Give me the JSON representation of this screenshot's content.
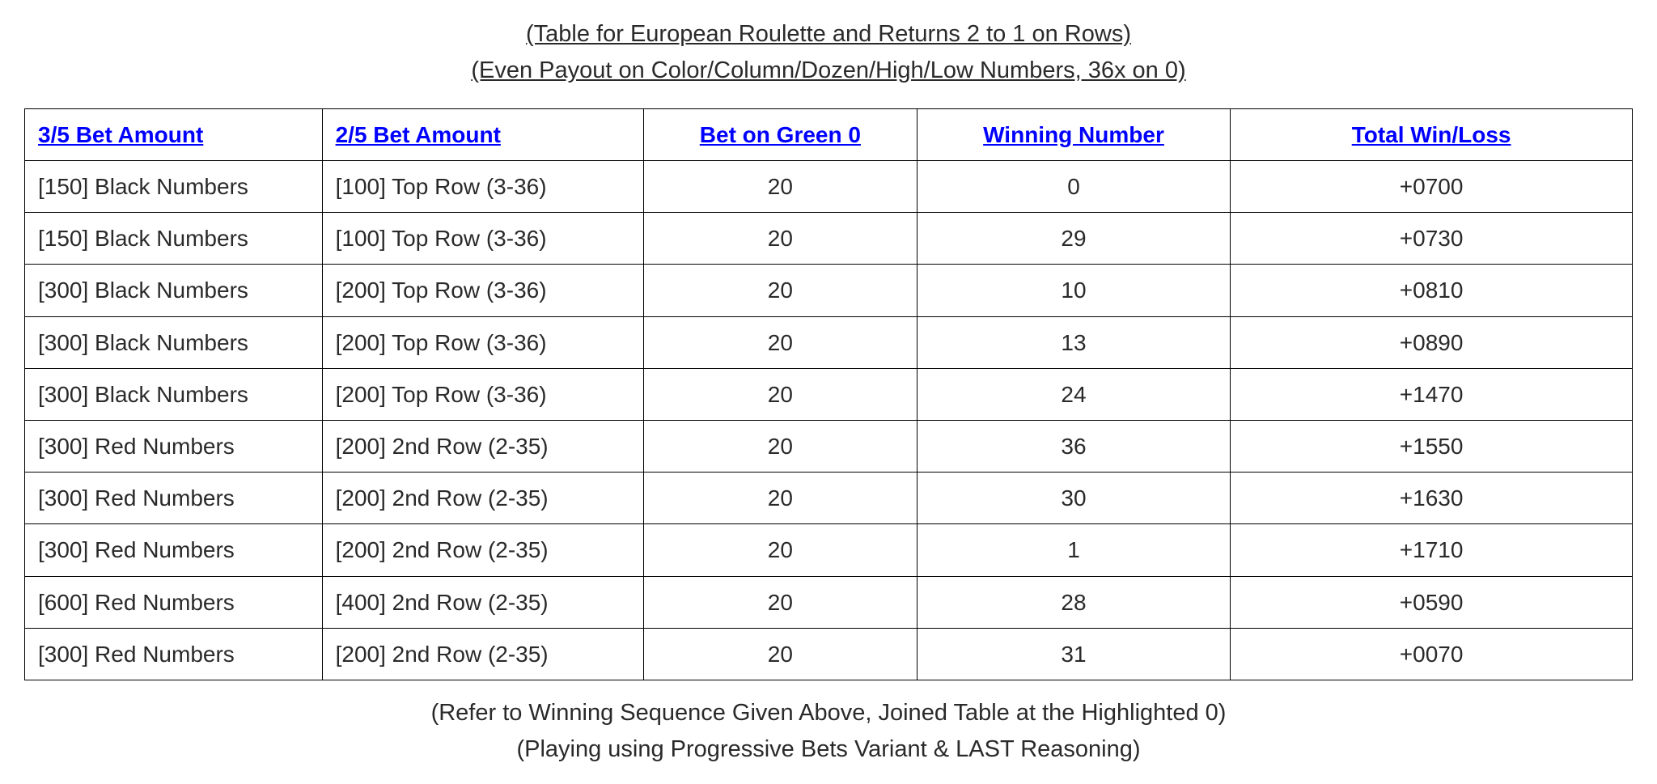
{
  "header": {
    "line1": "(Table for European Roulette and Returns 2 to 1 on Rows)",
    "line2": "(Even Payout on Color/Column/Dozen/High/Low Numbers, 36x on 0)"
  },
  "table": {
    "columns": [
      {
        "label": "3/5 Bet Amount",
        "align": "left"
      },
      {
        "label": "2/5 Bet Amount",
        "align": "left"
      },
      {
        "label": "Bet on Green 0",
        "align": "center"
      },
      {
        "label": "Winning Number",
        "align": "center"
      },
      {
        "label": "Total Win/Loss",
        "align": "center"
      }
    ],
    "rows": [
      [
        "[150] Black Numbers",
        "[100] Top Row (3-36)",
        "20",
        "0",
        "+0700"
      ],
      [
        "[150] Black Numbers",
        "[100] Top Row (3-36)",
        "20",
        "29",
        "+0730"
      ],
      [
        "[300] Black Numbers",
        "[200] Top Row (3-36)",
        "20",
        "10",
        "+0810"
      ],
      [
        "[300] Black Numbers",
        "[200] Top Row (3-36)",
        "20",
        "13",
        "+0890"
      ],
      [
        "[300] Black Numbers",
        "[200] Top Row (3-36)",
        "20",
        "24",
        "+1470"
      ],
      [
        "[300] Red Numbers",
        "[200] 2nd Row (2-35)",
        "20",
        "36",
        "+1550"
      ],
      [
        "[300] Red Numbers",
        "[200] 2nd Row (2-35)",
        "20",
        "30",
        "+1630"
      ],
      [
        "[300] Red Numbers",
        "[200] 2nd Row (2-35)",
        "20",
        "1",
        "+1710"
      ],
      [
        "[600] Red Numbers",
        "[400] 2nd Row (2-35)",
        "20",
        "28",
        "+0590"
      ],
      [
        "[300] Red Numbers",
        "[200] 2nd Row (2-35)",
        "20",
        "31",
        "+0070"
      ]
    ]
  },
  "footer": {
    "line1": "(Refer to Winning Sequence Given Above, Joined Table at the Highlighted 0)",
    "line2": "(Playing using Progressive Bets Variant & LAST Reasoning)"
  },
  "style": {
    "header_color": "#0000ff",
    "border_color": "#000000",
    "text_color": "#2a2a2a",
    "background_color": "#ffffff",
    "font_family": "Verdana, Geneva, Tahoma, sans-serif",
    "header_fontsize": 29,
    "cell_fontsize": 28,
    "caption_fontsize": 29
  }
}
